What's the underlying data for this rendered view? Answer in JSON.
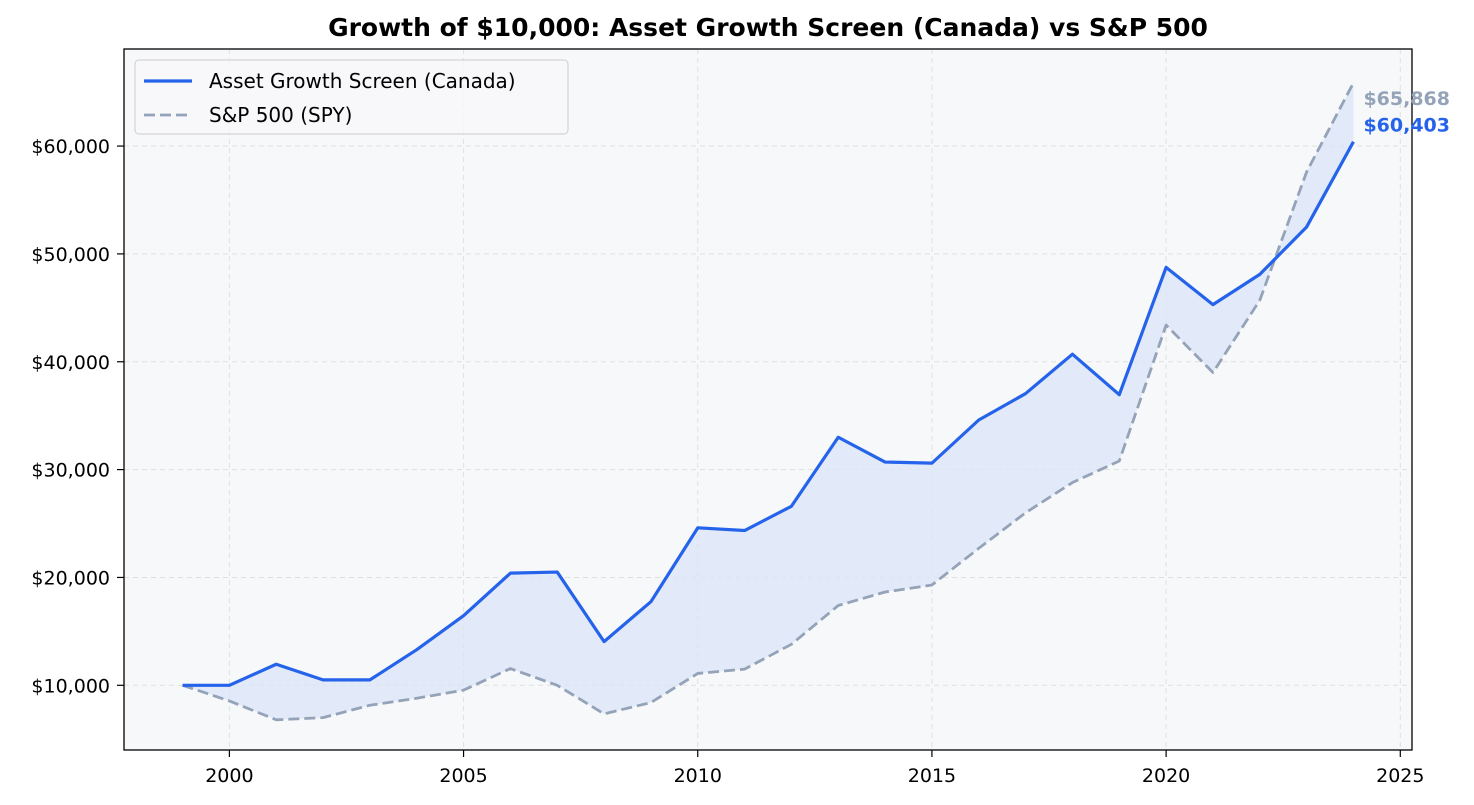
{
  "chart_data": {
    "type": "line",
    "title": "Growth of $10,000: Asset Growth Screen (Canada) vs S&P 500",
    "xlabel": "",
    "ylabel": "",
    "x": [
      1999,
      2000,
      2001,
      2002,
      2003,
      2004,
      2005,
      2006,
      2007,
      2008,
      2009,
      2010,
      2011,
      2012,
      2013,
      2014,
      2015,
      2016,
      2017,
      2018,
      2019,
      2020,
      2021,
      2022,
      2023,
      2024
    ],
    "xlim": [
      1997.75,
      2025.25
    ],
    "ylim": [
      4000,
      69000
    ],
    "x_ticks": [
      2000,
      2005,
      2010,
      2015,
      2020,
      2025
    ],
    "x_tick_labels": [
      "2000",
      "2005",
      "2010",
      "2015",
      "2020",
      "2025"
    ],
    "y_ticks": [
      10000,
      20000,
      30000,
      40000,
      50000,
      60000
    ],
    "y_tick_labels": [
      "$10,000",
      "$20,000",
      "$30,000",
      "$40,000",
      "$50,000",
      "$60,000"
    ],
    "grid": true,
    "legend_position": "top-left",
    "fill_between_series": true,
    "series": [
      {
        "name": "Asset Growth Screen (Canada)",
        "style": "solid",
        "color": "#2563eb",
        "values": [
          10000,
          10000,
          11950,
          10500,
          10500,
          13300,
          16450,
          20400,
          20500,
          14050,
          17750,
          24600,
          24350,
          26600,
          33000,
          30700,
          30600,
          34600,
          37050,
          40700,
          36950,
          48750,
          45300,
          48100,
          52500,
          60403
        ],
        "end_label": "$60,403"
      },
      {
        "name": "S&P 500 (SPY)",
        "style": "dashed",
        "color": "#94a3b8",
        "values": [
          10000,
          8550,
          6800,
          7000,
          8150,
          8800,
          9550,
          11550,
          10000,
          7350,
          8400,
          11100,
          11500,
          13800,
          17400,
          18650,
          19300,
          22700,
          26000,
          28800,
          30800,
          43400,
          39000,
          45700,
          57600,
          65868
        ],
        "end_label": "$65,868"
      }
    ],
    "colors": {
      "plot_background": "#f7f8fa",
      "fill_between": "#dbe5f8",
      "grid": "#e0e0e0",
      "axes": "#000000"
    }
  }
}
